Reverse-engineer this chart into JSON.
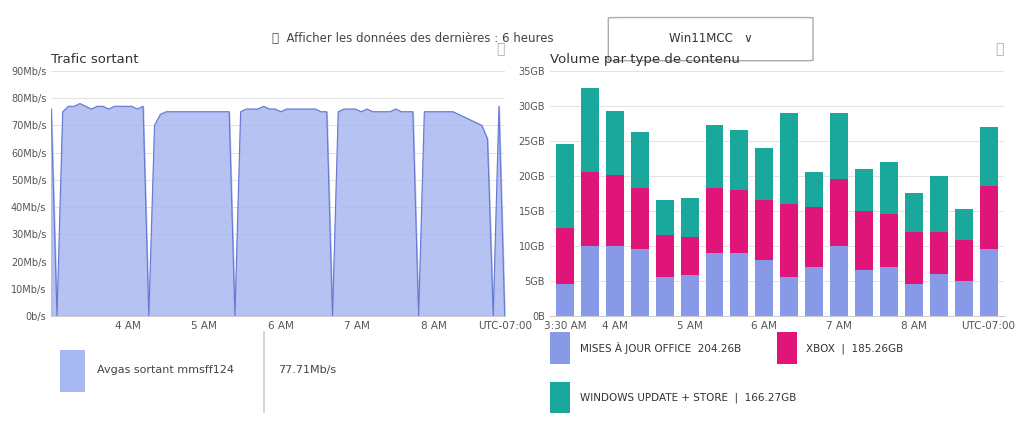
{
  "bg_color": "#ffffff",
  "header_text": "Afficher les données des dernières : 6 heures",
  "dropdown_text": "Win11MCC",
  "left_title": "Trafic sortant",
  "left_ylabel_ticks": [
    "0b/s",
    "10Mb/s",
    "20Mb/s",
    "30Mb/s",
    "40Mb/s",
    "50Mb/s",
    "60Mb/s",
    "70Mb/s",
    "80Mb/s",
    "90Mb/s"
  ],
  "left_ylabel_vals": [
    0,
    10,
    20,
    30,
    40,
    50,
    60,
    70,
    80,
    90
  ],
  "left_xlabels": [
    "4 AM",
    "5 AM",
    "6 AM",
    "7 AM",
    "8 AM",
    "UTC-07:00"
  ],
  "left_legend_label": "Avgas sortant mmsff124",
  "left_legend_value": "77.71Mb/s",
  "left_fill_color": "#a8b8f0",
  "left_line_color": "#6678d4",
  "left_x": [
    0,
    1,
    2,
    3,
    4,
    5,
    6,
    7,
    8,
    9,
    10,
    11,
    12,
    13,
    14,
    15,
    16,
    17,
    18,
    19,
    20,
    21,
    22,
    23,
    24,
    25,
    26,
    27,
    28,
    29,
    30,
    31,
    32,
    33,
    34,
    35,
    36,
    37,
    38,
    39,
    40,
    41,
    42,
    43,
    44,
    45,
    46,
    47,
    48,
    49,
    50,
    51,
    52,
    53,
    54,
    55,
    56,
    57,
    58,
    59,
    60,
    61,
    62,
    63,
    64,
    65,
    66,
    67,
    68,
    69,
    70,
    71,
    72,
    73,
    74,
    75,
    76,
    77,
    78,
    79
  ],
  "left_y": [
    76,
    0,
    75,
    77,
    77,
    78,
    77,
    76,
    77,
    77,
    76,
    77,
    77,
    77,
    77,
    76,
    77,
    0,
    70,
    74,
    75,
    75,
    75,
    75,
    75,
    75,
    75,
    75,
    75,
    75,
    75,
    75,
    0,
    75,
    76,
    76,
    76,
    77,
    76,
    76,
    75,
    76,
    76,
    76,
    76,
    76,
    76,
    75,
    75,
    0,
    75,
    76,
    76,
    76,
    75,
    76,
    75,
    75,
    75,
    75,
    76,
    75,
    75,
    75,
    0,
    75,
    75,
    75,
    75,
    75,
    75,
    74,
    73,
    72,
    71,
    70,
    65,
    0,
    77,
    0
  ],
  "right_title": "Volume par type de contenu",
  "right_xlabels": [
    "4 AM",
    "5 AM",
    "6 AM",
    "7 AM",
    "8 AM",
    "UTC-07:00"
  ],
  "right_yticks": [
    0,
    5,
    10,
    15,
    20,
    25,
    30,
    35
  ],
  "right_ytick_labels": [
    "0B",
    "5GB",
    "10GB",
    "15GB",
    "20GB",
    "25GB",
    "30GB",
    "35GB"
  ],
  "bar_groups": [
    {
      "label": "3:30 AM",
      "office": 4.5,
      "xbox": 8.0,
      "windows": 12.0
    },
    {
      "label": "",
      "office": 10.0,
      "xbox": 10.5,
      "windows": 12.0
    },
    {
      "label": "4 AM",
      "office": 10.0,
      "xbox": 10.2,
      "windows": 9.0
    },
    {
      "label": "",
      "office": 9.5,
      "xbox": 8.8,
      "windows": 8.0
    },
    {
      "label": "",
      "office": 5.5,
      "xbox": 6.0,
      "windows": 5.0
    },
    {
      "label": "5 AM",
      "office": 5.8,
      "xbox": 5.5,
      "windows": 5.5
    },
    {
      "label": "",
      "office": 9.0,
      "xbox": 9.3,
      "windows": 9.0
    },
    {
      "label": "",
      "office": 9.0,
      "xbox": 9.0,
      "windows": 8.5
    },
    {
      "label": "6 AM",
      "office": 8.0,
      "xbox": 8.5,
      "windows": 7.5
    },
    {
      "label": "",
      "office": 5.5,
      "xbox": 10.5,
      "windows": 13.0
    },
    {
      "label": "",
      "office": 7.0,
      "xbox": 8.5,
      "windows": 5.0
    },
    {
      "label": "7 AM",
      "office": 10.0,
      "xbox": 9.5,
      "windows": 9.5
    },
    {
      "label": "",
      "office": 6.5,
      "xbox": 8.5,
      "windows": 6.0
    },
    {
      "label": "",
      "office": 7.0,
      "xbox": 7.5,
      "windows": 7.5
    },
    {
      "label": "8 AM",
      "office": 4.5,
      "xbox": 7.5,
      "windows": 5.5
    },
    {
      "label": "",
      "office": 6.0,
      "xbox": 6.0,
      "windows": 8.0
    },
    {
      "label": "",
      "office": 5.0,
      "xbox": 5.8,
      "windows": 4.5
    },
    {
      "label": "UTC-07:00",
      "office": 9.5,
      "xbox": 9.0,
      "windows": 8.5
    }
  ],
  "color_office": "#8899e8",
  "color_xbox": "#e0157a",
  "color_windows": "#1aa89c",
  "legend_office": "MISES À JOUR OFFICE",
  "legend_office_val": "204.26B",
  "legend_xbox": "XBOX",
  "legend_xbox_val": "185.26GB",
  "legend_windows": "WINDOWS UPDATE + STORE",
  "legend_windows_val": "166.27GB"
}
